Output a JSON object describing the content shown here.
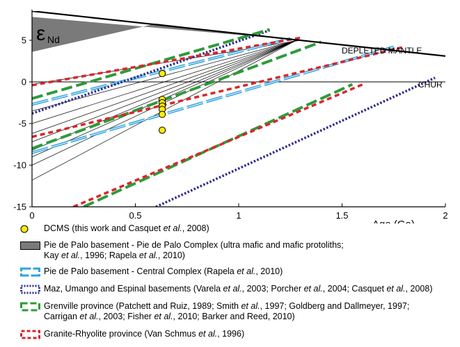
{
  "chart_data": {
    "type": "line",
    "x_range": [
      0,
      2
    ],
    "y_range": [
      -15,
      8.5
    ],
    "x_ticks": [
      "0",
      "0.5",
      "1",
      "1.5",
      "2"
    ],
    "y_ticks": [
      "5",
      "0",
      "-5",
      "-10",
      "-15"
    ],
    "xlabel": "Age (Ga)",
    "ylabel_symbol": "ε",
    "ylabel_sub": "Nd",
    "depleted_mantle_label": "DEPLETED MANTLE",
    "chur_label": "CHUR",
    "depleted_mantle": {
      "x": [
        0,
        2
      ],
      "y": [
        8.5,
        3.1
      ]
    },
    "chur": {
      "x": [
        0,
        2
      ],
      "y": [
        0,
        0
      ]
    },
    "shaded_area_polygon": {
      "x": [
        0,
        0.6,
        1.3,
        0
      ],
      "y": [
        3.6,
        7.0,
        5.0,
        7.8
      ]
    },
    "dcms_points": {
      "x": [
        0.63,
        0.63,
        0.63,
        0.63,
        0.63,
        0.63,
        0.63
      ],
      "y": [
        1.0,
        -2.1,
        -2.5,
        -2.9,
        -3.3,
        -3.9,
        -5.8
      ]
    },
    "thin_lines": [
      {
        "x": [
          0,
          1.28
        ],
        "y": [
          -3.5,
          5.0
        ]
      },
      {
        "x": [
          0,
          1.28
        ],
        "y": [
          -5.0,
          5.0
        ]
      },
      {
        "x": [
          0,
          1.28
        ],
        "y": [
          -6.2,
          5.0
        ]
      },
      {
        "x": [
          0,
          1.28
        ],
        "y": [
          -7.2,
          5.0
        ]
      },
      {
        "x": [
          0,
          1.28
        ],
        "y": [
          -8.2,
          5.0
        ]
      },
      {
        "x": [
          0,
          1.28
        ],
        "y": [
          -9.0,
          5.0
        ]
      },
      {
        "x": [
          0,
          1.28
        ],
        "y": [
          -10.0,
          5.0
        ]
      },
      {
        "x": [
          0,
          1.28
        ],
        "y": [
          -11.8,
          5.0
        ]
      },
      {
        "x": [
          0,
          1.3
        ],
        "y": [
          -0.3,
          5.0
        ]
      }
    ],
    "series": [
      {
        "name": "Pie de Palo basement - Central Complex",
        "style": "dash-blue",
        "color": "#2fa3de",
        "lines": [
          {
            "x": [
              0,
              1.25
            ],
            "y": [
              -2.7,
              5.2
            ]
          },
          {
            "x": [
              0,
              1.75
            ],
            "y": [
              -8.5,
              4.2
            ]
          }
        ]
      },
      {
        "name": "Maz, Umango and Espinal basements",
        "style": "dot-navy",
        "color": "#2e2a8c",
        "lines": [
          {
            "x": [
              0,
              1.15
            ],
            "y": [
              -3.8,
              6.2
            ]
          },
          {
            "x": [
              0.6,
              1.95
            ],
            "y": [
              -15,
              0.5
            ]
          }
        ]
      },
      {
        "name": "Grenville province",
        "style": "dash-green",
        "color": "#2e9b3a",
        "lines": [
          {
            "x": [
              0,
              1.15
            ],
            "y": [
              -2.0,
              6.3
            ]
          },
          {
            "x": [
              0,
              1.4
            ],
            "y": [
              -8.0,
              4.8
            ]
          },
          {
            "x": [
              0.25,
              1.55
            ],
            "y": [
              -15,
              -0.3
            ]
          }
        ]
      },
      {
        "name": "Granite-Rhyolite province",
        "style": "dash-red",
        "color": "#d9262d",
        "lines": [
          {
            "x": [
              0,
              1.3
            ],
            "y": [
              -0.4,
              5.3
            ]
          },
          {
            "x": [
              0,
              1.8
            ],
            "y": [
              -6.6,
              4.2
            ]
          },
          {
            "x": [
              0.2,
              1.6
            ],
            "y": [
              -15,
              -0.3
            ]
          }
        ]
      }
    ]
  },
  "legend": {
    "items": [
      {
        "key": "dcms",
        "lines": [
          "DCMS (this work and Casquet et al., 2008)"
        ]
      },
      {
        "key": "pdp",
        "lines": [
          "Pie de Palo basement - Pie de Palo Complex (ultra mafic and mafic protoliths;",
          "Kay et al., 1996; Rapela et al., 2010)"
        ]
      },
      {
        "key": "central",
        "lines": [
          "Pie de Palo basement - Central Complex (Rapela et al., 2010)"
        ]
      },
      {
        "key": "maz",
        "lines": [
          "Maz, Umango and Espinal basements (Varela et al., 2003; Porcher et al., 2004; Casquet et al., 2008)"
        ]
      },
      {
        "key": "grenville",
        "lines": [
          "Grenville province (Patchett and Ruiz, 1989; Smith et al., 1997; Goldberg and Dallmeyer, 1997;",
          "Carrigan et al., 2003; Fisher et al., 2010; Barker and Reed, 2010)"
        ]
      },
      {
        "key": "granite",
        "lines": [
          "Granite-Rhyolite province (Van Schmus et al., 1996)"
        ]
      }
    ]
  }
}
